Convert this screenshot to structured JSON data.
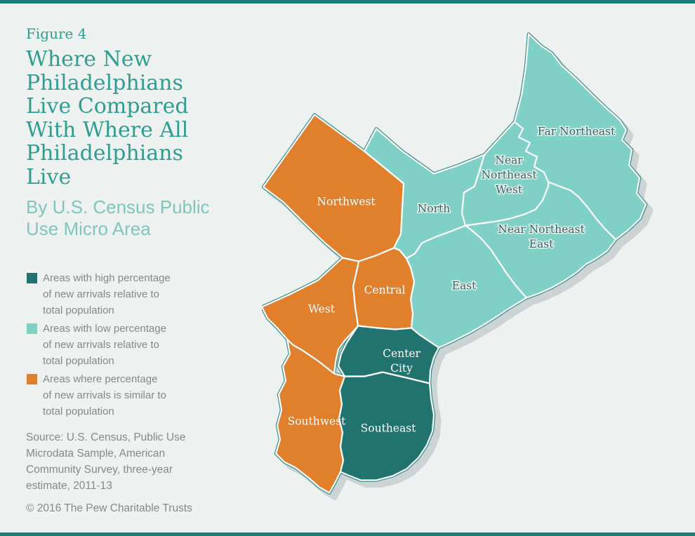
{
  "page": {
    "figure_label": "Figure 4",
    "title_lines": [
      "Where New",
      "Philadelphians",
      "Live Compared",
      "With Where All",
      "Philadelphians",
      "Live"
    ],
    "subtitle_lines": [
      "By U.S. Census Public",
      "Use Micro Area"
    ],
    "source_lines": [
      "Source: U.S. Census, Public Use",
      "Microdata Sample, American",
      "Community Survey, three-year",
      "estimate, 2011-13"
    ],
    "copyright": "© 2016 The Pew Charitable Trusts"
  },
  "colors": {
    "high": "#20736f",
    "low": "#7fd0c6",
    "similar": "#e07f2c",
    "background": "#edf2f1",
    "rule_bar": "#1a7d79",
    "title": "#2f9c92",
    "subtitle": "#7fc5bb",
    "body_text": "#84888a",
    "map_outline": "#2d8a83",
    "map_shadow": "#ccd3d5",
    "map_label_dark": "#3f6060",
    "map_label_halo": "#e3f3ef",
    "map_label_light": "#ffffff",
    "inner_border": "#ffffff"
  },
  "legend": [
    {
      "swatch": "high",
      "lines": [
        "Areas with high percentage",
        "of new arrivals relative to",
        "total population"
      ]
    },
    {
      "swatch": "low",
      "lines": [
        "Areas with low percentage",
        "of new arrivals relative to",
        "total population"
      ]
    },
    {
      "swatch": "similar",
      "lines": [
        "Areas where percentage",
        "of new arrivals is similar to",
        "total population"
      ]
    }
  ],
  "map": {
    "regions": [
      {
        "id": "northwest",
        "name": "Northwest",
        "category": "similar",
        "label_lines": [
          "Northwest"
        ],
        "label_color": "light"
      },
      {
        "id": "north",
        "name": "North",
        "category": "low",
        "label_lines": [
          "North"
        ],
        "label_color": "dark"
      },
      {
        "id": "near-northeast-west",
        "name": "Near Northeast West",
        "category": "low",
        "label_lines": [
          "Near",
          "Northeast",
          "West"
        ],
        "label_color": "dark"
      },
      {
        "id": "far-northeast",
        "name": "Far Northeast",
        "category": "low",
        "label_lines": [
          "Far Northeast"
        ],
        "label_color": "dark"
      },
      {
        "id": "near-northeast-east",
        "name": "Near Northeast East",
        "category": "low",
        "label_lines": [
          "Near Northeast",
          "East"
        ],
        "label_color": "dark"
      },
      {
        "id": "east",
        "name": "East",
        "category": "low",
        "label_lines": [
          "East"
        ],
        "label_color": "dark"
      },
      {
        "id": "central",
        "name": "Central",
        "category": "similar",
        "label_lines": [
          "Central"
        ],
        "label_color": "light"
      },
      {
        "id": "west",
        "name": "West",
        "category": "similar",
        "label_lines": [
          "West"
        ],
        "label_color": "light"
      },
      {
        "id": "center-city",
        "name": "Center City",
        "category": "high",
        "label_lines": [
          "Center",
          "City"
        ],
        "label_color": "light"
      },
      {
        "id": "southwest",
        "name": "Southwest",
        "category": "similar",
        "label_lines": [
          "Southwest"
        ],
        "label_color": "light"
      },
      {
        "id": "southeast",
        "name": "Southeast",
        "category": "high",
        "label_lines": [
          "Southeast"
        ],
        "label_color": "light"
      }
    ]
  }
}
